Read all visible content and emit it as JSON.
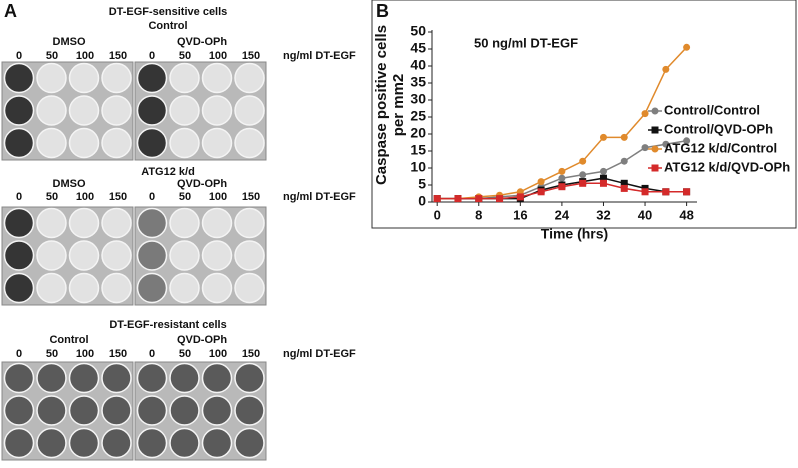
{
  "panel_a": {
    "label": "A",
    "blocks": [
      {
        "title": "DT-EGF-sensitive cells",
        "subtitle": "Control",
        "groups": [
          "DMSO",
          "QVD-OPh"
        ],
        "doses": [
          "0",
          "50",
          "100",
          "150"
        ],
        "dose_unit": "ng/ml DT-EGF"
      },
      {
        "title": "ATG12 k/d",
        "groups": [
          "DMSO",
          "QVD-OPh"
        ],
        "doses": [
          "0",
          "50",
          "100",
          "150"
        ],
        "dose_unit": "ng/ml DT-EGF"
      },
      {
        "title": "DT-EGF-resistant cells",
        "groups": [
          "Control",
          "QVD-OPh"
        ],
        "doses": [
          "0",
          "50",
          "100",
          "150"
        ],
        "dose_unit": "ng/ml DT-EGF"
      }
    ]
  },
  "chart_data": {
    "type": "line",
    "panel_label": "B",
    "title": "50 ng/ml DT-EGF",
    "xlabel": "Time (hrs)",
    "ylabel": [
      "Caspase positive cells",
      "per mm2"
    ],
    "x": [
      0,
      4,
      8,
      12,
      16,
      20,
      24,
      28,
      32,
      36,
      40,
      44,
      48
    ],
    "xlim": [
      -1,
      50
    ],
    "xticks": [
      0,
      8,
      16,
      24,
      32,
      40,
      48
    ],
    "ylim": [
      0,
      50
    ],
    "yticks": [
      0,
      5,
      10,
      15,
      20,
      25,
      30,
      35,
      40,
      45,
      50
    ],
    "series": [
      {
        "name": "Control/Control",
        "color": "#7f7f7f",
        "marker": "circle",
        "values": [
          1,
          1,
          1,
          1.5,
          2,
          4.5,
          7,
          8,
          9,
          12,
          16,
          17,
          18
        ]
      },
      {
        "name": "Control/QVD-OPh",
        "color": "#111111",
        "marker": "square",
        "values": [
          1,
          1,
          1,
          1,
          1,
          3.5,
          5,
          6,
          7,
          5.5,
          4,
          3,
          3
        ]
      },
      {
        "name": "ATG12 k/d/Control",
        "color": "#e08a2c",
        "marker": "circle",
        "values": [
          1,
          1,
          1.5,
          2,
          3,
          6,
          9,
          12,
          19,
          19,
          26,
          39,
          45.5
        ]
      },
      {
        "name": "ATG12 k/d/QVD-OPh",
        "color": "#d42a2a",
        "marker": "square",
        "values": [
          1,
          1,
          1,
          1,
          1.5,
          3,
          4.5,
          5.5,
          5.5,
          4,
          3,
          3,
          3
        ]
      }
    ]
  }
}
